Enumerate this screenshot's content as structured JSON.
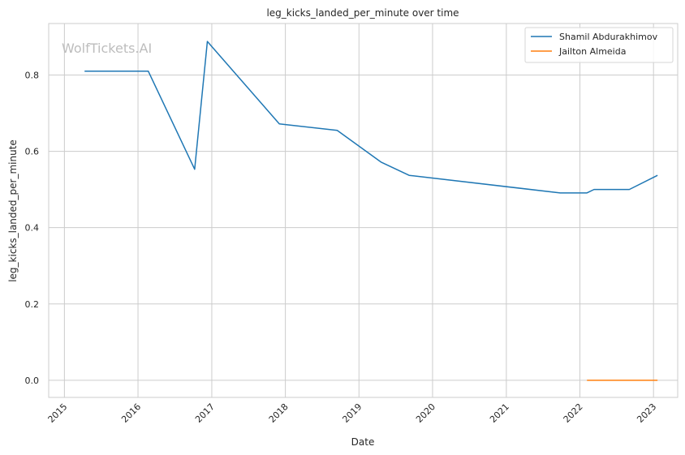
{
  "chart_data": {
    "type": "line",
    "title": "leg_kicks_landed_per_minute over time",
    "xlabel": "Date",
    "ylabel": "leg_kicks_landed_per_minute",
    "watermark": "WolfTickets.AI",
    "xlim": [
      "2014-10-15",
      "2023-05-01"
    ],
    "ylim": [
      -0.045,
      0.935
    ],
    "x_ticks": [
      "2015",
      "2016",
      "2017",
      "2018",
      "2019",
      "2020",
      "2021",
      "2022",
      "2023"
    ],
    "y_ticks": [
      "0.0",
      "0.2",
      "0.4",
      "0.6",
      "0.8"
    ],
    "grid": true,
    "legend_position": "top-right",
    "series": [
      {
        "name": "Shamil Abdurakhimov",
        "color": "#1f77b4",
        "points": [
          {
            "x": "2015-04-11",
            "y": 0.81
          },
          {
            "x": "2016-02-21",
            "y": 0.81
          },
          {
            "x": "2016-10-08",
            "y": 0.553
          },
          {
            "x": "2016-12-10",
            "y": 0.888
          },
          {
            "x": "2017-12-02",
            "y": 0.672
          },
          {
            "x": "2018-09-15",
            "y": 0.655
          },
          {
            "x": "2019-04-20",
            "y": 0.572
          },
          {
            "x": "2019-09-07",
            "y": 0.537
          },
          {
            "x": "2021-09-25",
            "y": 0.491
          },
          {
            "x": "2022-02-05",
            "y": 0.491
          },
          {
            "x": "2022-03-12",
            "y": 0.5
          },
          {
            "x": "2022-09-03",
            "y": 0.5
          },
          {
            "x": "2023-01-21",
            "y": 0.537
          }
        ]
      },
      {
        "name": "Jailton Almeida",
        "color": "#ff7f0e",
        "points": [
          {
            "x": "2022-02-05",
            "y": 0.0
          },
          {
            "x": "2023-01-21",
            "y": 0.0
          }
        ]
      }
    ]
  }
}
